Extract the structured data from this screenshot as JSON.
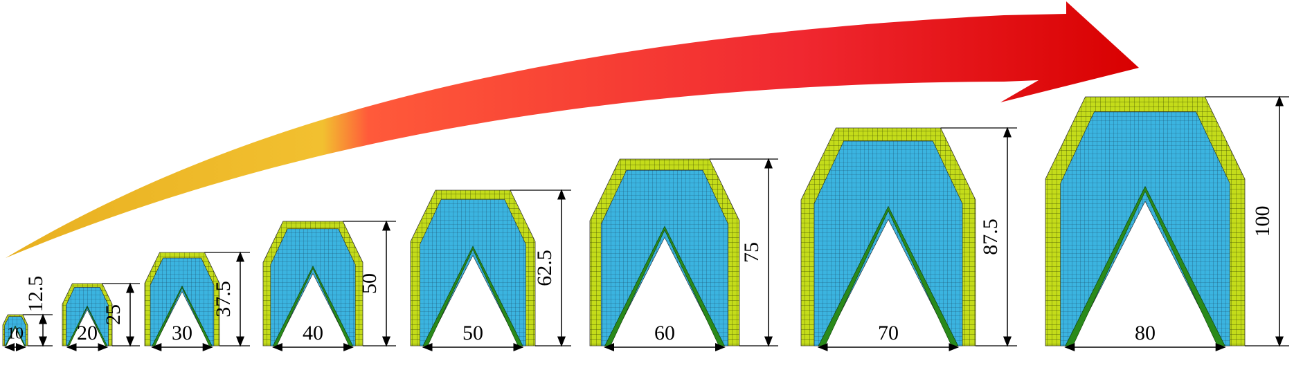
{
  "specimens": [
    {
      "width": 10,
      "height": 12.5
    },
    {
      "width": 20,
      "height": 25
    },
    {
      "width": 30,
      "height": 37.5
    },
    {
      "width": 40,
      "height": 50
    },
    {
      "width": 50,
      "height": 62.5
    },
    {
      "width": 60,
      "height": 75
    },
    {
      "width": 70,
      "height": 87.5
    },
    {
      "width": 80,
      "height": 100
    }
  ]
}
